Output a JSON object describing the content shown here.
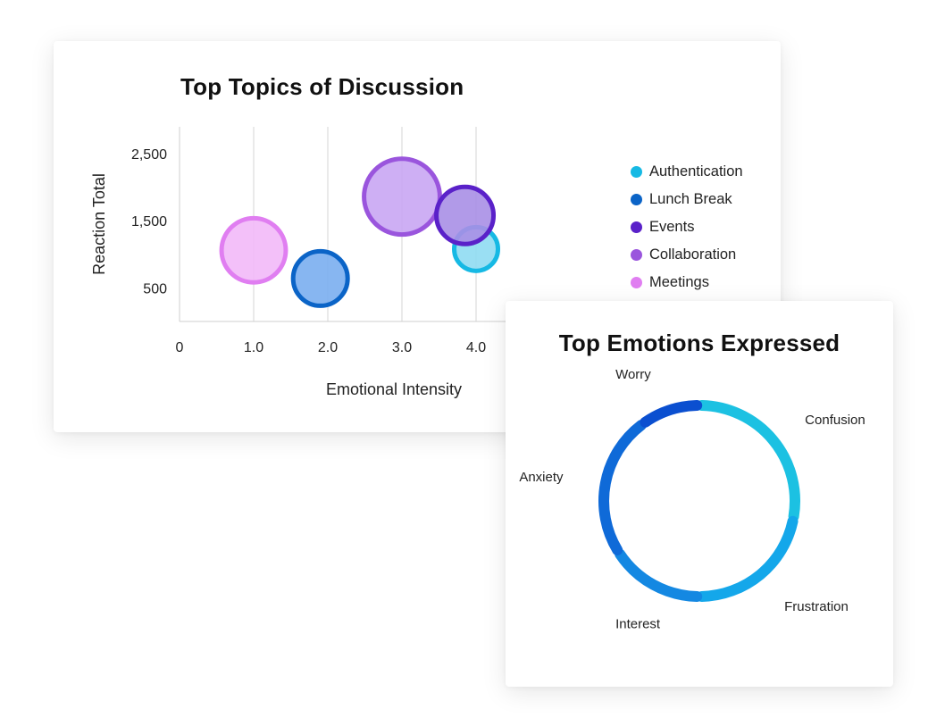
{
  "chart_data": [
    {
      "type": "scatter",
      "title": "Top Topics of Discussion",
      "xlabel": "Emotional Intensity",
      "ylabel": "Reaction Total",
      "x_ticks": [
        "0",
        "1.0",
        "2.0",
        "3.0",
        "4.0"
      ],
      "y_ticks": [
        "2,500",
        "1,500",
        "500"
      ],
      "xlim": [
        0,
        5
      ],
      "ylim": [
        0,
        2900
      ],
      "grid": "vertical",
      "legend_position": "right",
      "series": [
        {
          "name": "Authentication",
          "x": 4.0,
          "y": 1080,
          "size": 1,
          "color": "#16b9e4",
          "fill": "#8fdcf2"
        },
        {
          "name": "Lunch Break",
          "x": 1.9,
          "y": 640,
          "size": 2,
          "color": "#0b64c7",
          "fill": "#7aaef0"
        },
        {
          "name": "Events",
          "x": 3.85,
          "y": 1580,
          "size": 2.3,
          "color": "#5a21c9",
          "fill": "#a98fe6"
        },
        {
          "name": "Collaboration",
          "x": 3.0,
          "y": 1860,
          "size": 5,
          "color": "#9a55dd",
          "fill": "#c9a6f3"
        },
        {
          "name": "Meetings",
          "x": 1.0,
          "y": 1060,
          "size": 3.2,
          "color": "#e07ef1",
          "fill": "#f2b9f8"
        }
      ]
    },
    {
      "type": "pie",
      "style": "ring",
      "title": "Top Emotions Expressed",
      "categories": [
        "Confusion",
        "Frustration",
        "Interest",
        "Anxiety",
        "Worry"
      ],
      "values": [
        28,
        22,
        16,
        24,
        10
      ],
      "colors": [
        "#1cc1e2",
        "#14a7ea",
        "#1488e2",
        "#0f6ad8",
        "#0b4fd0"
      ]
    }
  ]
}
